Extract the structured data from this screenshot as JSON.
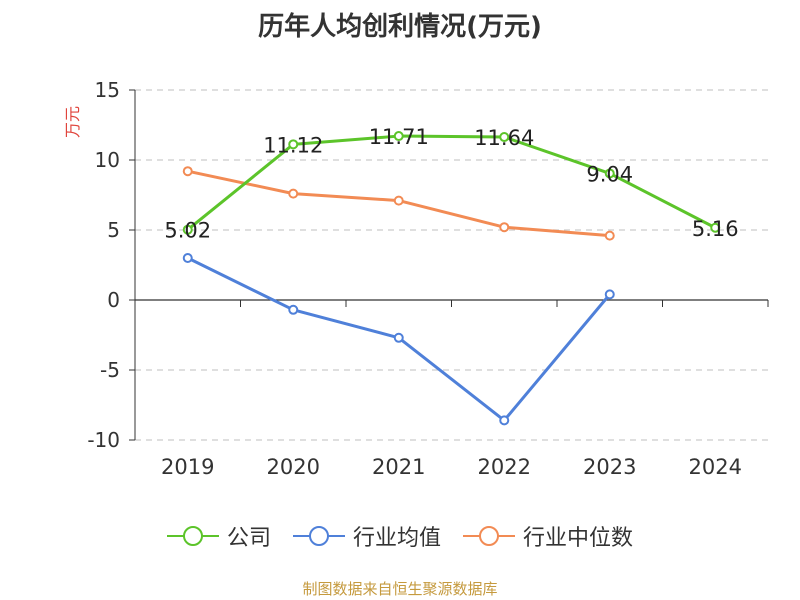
{
  "title": "历年人均创利情况(万元)",
  "footer": "制图数据来自恒生聚源数据库",
  "chart_data": {
    "type": "line",
    "title": "历年人均创利情况(万元)",
    "ylabel": "万元",
    "xlabel": "",
    "categories": [
      "2019",
      "2020",
      "2021",
      "2022",
      "2023",
      "2024"
    ],
    "ylim": [
      -10,
      15
    ],
    "yticks": [
      -10,
      -5,
      0,
      5,
      10,
      15
    ],
    "grid": true,
    "legend_position": "bottom",
    "series": [
      {
        "name": "公司",
        "color": "#5cc42a",
        "values": [
          5.02,
          11.12,
          11.71,
          11.64,
          9.04,
          5.16
        ],
        "labels": [
          "5.02",
          "11.12",
          "11.71",
          "11.64",
          "9.04",
          "5.16"
        ]
      },
      {
        "name": "行业均值",
        "color": "#4f80d9",
        "values": [
          3.0,
          -0.7,
          -2.7,
          -8.6,
          0.4,
          null
        ]
      },
      {
        "name": "行业中位数",
        "color": "#f28b54",
        "values": [
          9.2,
          7.6,
          7.1,
          5.2,
          4.6,
          null
        ]
      }
    ]
  }
}
